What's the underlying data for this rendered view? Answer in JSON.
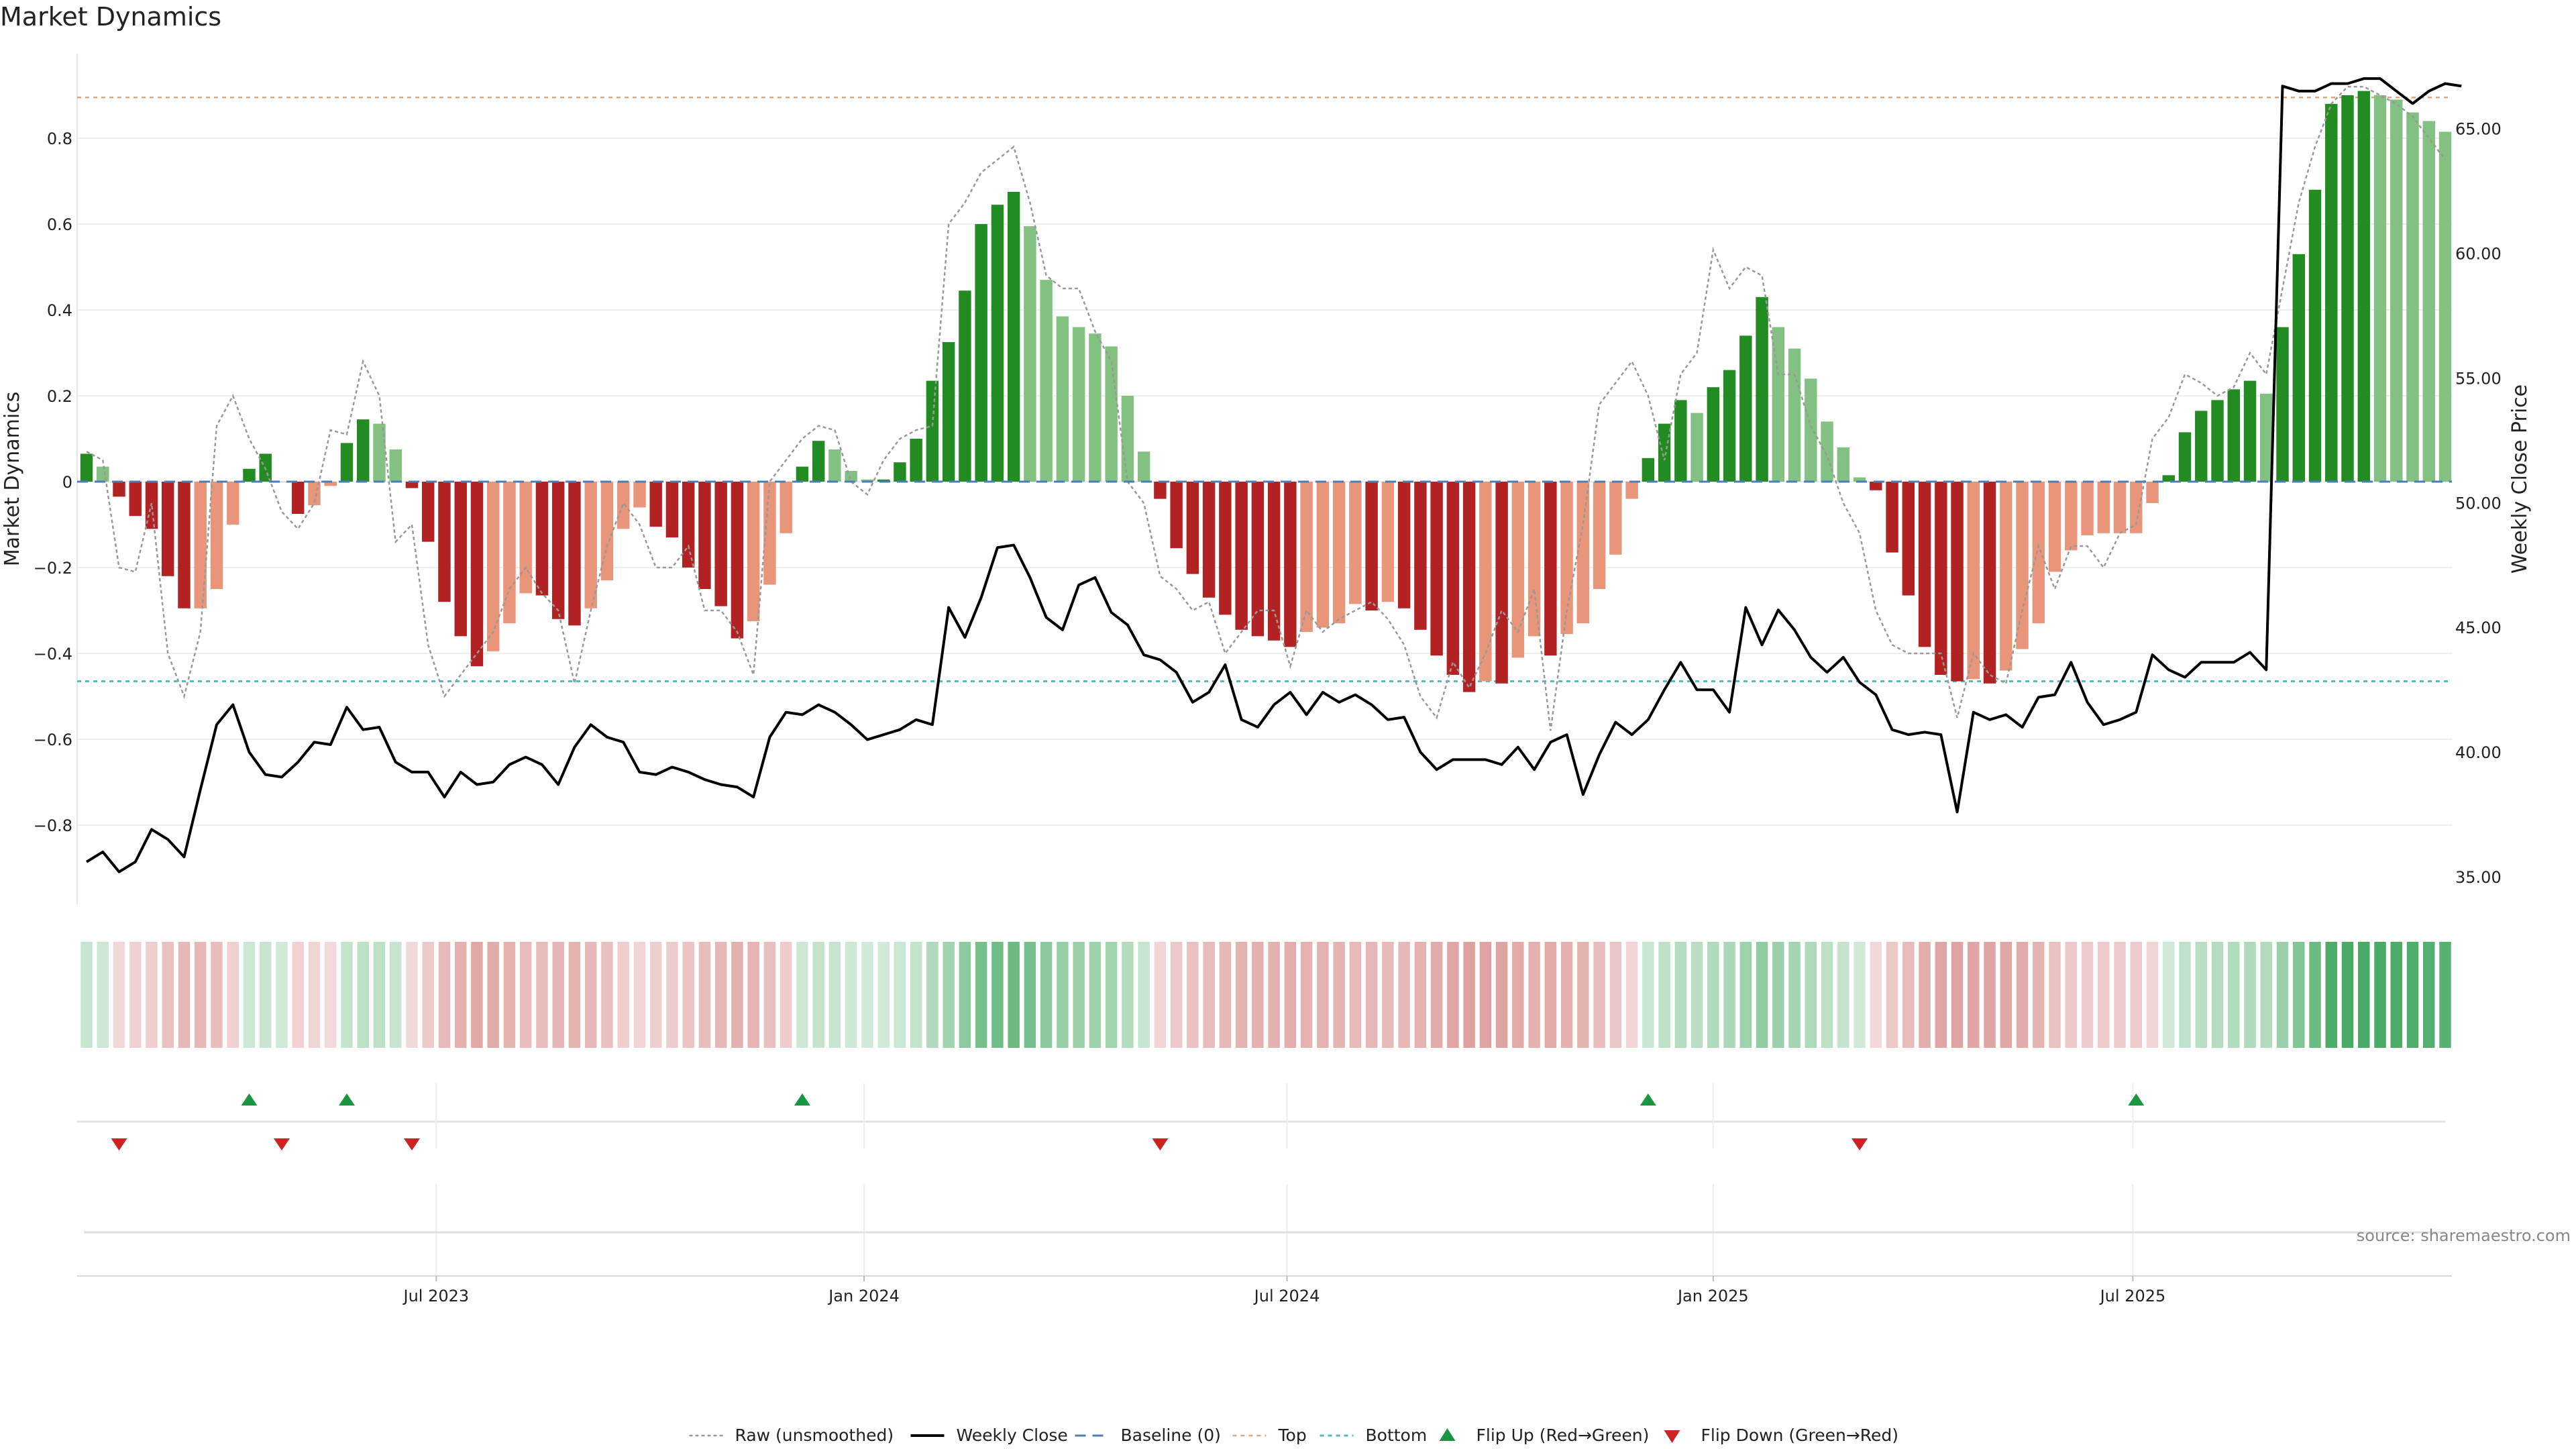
{
  "chart_data": {
    "type": "bar",
    "title": "Market Dynamics",
    "ylabel_left": "Market Dynamics",
    "ylabel_right": "Weekly Close Price",
    "ylim_left": [
      -0.98,
      0.98
    ],
    "ylim_right": [
      33.9,
      68.0
    ],
    "yticks_left": [
      0.8,
      0.6,
      0.4,
      0.2,
      0,
      -0.2,
      -0.4,
      -0.6,
      -0.8
    ],
    "ytick_labels_left": [
      "0.8",
      "0.6",
      "0.4",
      "0.2",
      "0",
      "−0.2",
      "−0.4",
      "−0.6",
      "−0.8"
    ],
    "yticks_right": [
      65,
      60,
      55,
      50,
      45,
      40,
      35
    ],
    "ytick_labels_right": [
      "65.00",
      "60.00",
      "55.00",
      "50.00",
      "45.00",
      "40.00",
      "35.00"
    ],
    "x_start": "2023-02-06",
    "x_end": "2025-10-27",
    "x_ticks": [
      "Jul 2023",
      "Jan 2024",
      "Jul 2024",
      "Jan 2025",
      "Jul 2025"
    ],
    "x_tick_positions": [
      21.5,
      47.8,
      73.8,
      100.0,
      125.8
    ],
    "source": "source: sharemaestro.com",
    "top_level": 0.895,
    "bottom_level": -0.465,
    "baseline": 0,
    "colors": {
      "strong_green": "#228b22",
      "light_green": "#82c182",
      "strong_red": "#b22222",
      "light_red": "#e8957a",
      "price": "#000000",
      "raw": "#999999",
      "baseline": "#4a7fb5",
      "top": "#d4a888",
      "bottom": "#4dbdbd",
      "flip_up": "#1a9641",
      "flip_down": "#cc2222",
      "heat_green": "#2e9e4f",
      "heat_red": "#c85a5a"
    },
    "series": [
      {
        "name": "Market Dynamics (smoothed)",
        "values": [
          0.065,
          0.035,
          -0.035,
          -0.08,
          -0.11,
          -0.22,
          -0.295,
          -0.295,
          -0.25,
          -0.1,
          0.03,
          0.065,
          0.0,
          -0.075,
          -0.055,
          -0.01,
          0.09,
          0.145,
          0.135,
          0.075,
          -0.015,
          -0.14,
          -0.28,
          -0.36,
          -0.43,
          -0.395,
          -0.33,
          -0.26,
          -0.265,
          -0.32,
          -0.335,
          -0.295,
          -0.23,
          -0.11,
          -0.06,
          -0.105,
          -0.13,
          -0.2,
          -0.25,
          -0.29,
          -0.365,
          -0.325,
          -0.24,
          -0.12,
          0.035,
          0.095,
          0.075,
          0.025,
          0.005,
          0.005,
          0.045,
          0.1,
          0.235,
          0.325,
          0.445,
          0.6,
          0.645,
          0.675,
          0.595,
          0.47,
          0.385,
          0.36,
          0.345,
          0.315,
          0.2,
          0.07,
          -0.04,
          -0.155,
          -0.215,
          -0.27,
          -0.31,
          -0.345,
          -0.36,
          -0.37,
          -0.385,
          -0.35,
          -0.34,
          -0.33,
          -0.285,
          -0.3,
          -0.28,
          -0.295,
          -0.345,
          -0.405,
          -0.45,
          -0.49,
          -0.465,
          -0.47,
          -0.41,
          -0.36,
          -0.405,
          -0.355,
          -0.33,
          -0.25,
          -0.17,
          -0.04,
          0.055,
          0.135,
          0.19,
          0.16,
          0.22,
          0.26,
          0.34,
          0.43,
          0.36,
          0.31,
          0.24,
          0.14,
          0.08,
          0.01,
          -0.02,
          -0.165,
          -0.265,
          -0.385,
          -0.45,
          -0.465,
          -0.46,
          -0.47,
          -0.44,
          -0.39,
          -0.33,
          -0.21,
          -0.16,
          -0.125,
          -0.12,
          -0.12,
          -0.12,
          -0.05,
          0.015,
          0.115,
          0.165,
          0.19,
          0.215,
          0.235,
          0.205,
          0.36,
          0.53,
          0.68,
          0.88,
          0.9,
          0.91,
          0.9,
          0.89,
          0.86,
          0.84,
          0.815
        ]
      },
      {
        "name": "Raw (unsmoothed)",
        "values": [
          0.07,
          0.05,
          -0.2,
          -0.21,
          -0.05,
          -0.4,
          -0.5,
          -0.35,
          0.13,
          0.2,
          0.1,
          0.03,
          -0.07,
          -0.11,
          -0.05,
          0.12,
          0.11,
          0.28,
          0.2,
          -0.14,
          -0.1,
          -0.38,
          -0.5,
          -0.45,
          -0.4,
          -0.35,
          -0.25,
          -0.2,
          -0.26,
          -0.3,
          -0.47,
          -0.3,
          -0.15,
          -0.05,
          -0.1,
          -0.2,
          -0.2,
          -0.15,
          -0.3,
          -0.3,
          -0.35,
          -0.45,
          0.0,
          0.05,
          0.1,
          0.13,
          0.12,
          0.0,
          -0.03,
          0.05,
          0.1,
          0.12,
          0.13,
          0.6,
          0.65,
          0.72,
          0.75,
          0.78,
          0.65,
          0.48,
          0.45,
          0.45,
          0.35,
          0.28,
          0.0,
          -0.05,
          -0.22,
          -0.25,
          -0.3,
          -0.28,
          -0.4,
          -0.35,
          -0.3,
          -0.3,
          -0.43,
          -0.3,
          -0.35,
          -0.32,
          -0.3,
          -0.28,
          -0.32,
          -0.38,
          -0.5,
          -0.55,
          -0.42,
          -0.48,
          -0.4,
          -0.3,
          -0.35,
          -0.25,
          -0.58,
          -0.3,
          -0.1,
          0.18,
          0.23,
          0.28,
          0.2,
          0.05,
          0.25,
          0.3,
          0.54,
          0.45,
          0.5,
          0.48,
          0.25,
          0.25,
          0.13,
          0.06,
          -0.05,
          -0.12,
          -0.3,
          -0.38,
          -0.4,
          -0.4,
          -0.4,
          -0.55,
          -0.4,
          -0.45,
          -0.47,
          -0.3,
          -0.15,
          -0.25,
          -0.15,
          -0.15,
          -0.2,
          -0.12,
          -0.1,
          0.1,
          0.15,
          0.25,
          0.23,
          0.2,
          0.22,
          0.3,
          0.25,
          0.45,
          0.65,
          0.78,
          0.88,
          0.92,
          0.92,
          0.9,
          0.88,
          0.85,
          0.8,
          0.75
        ]
      },
      {
        "name": "Weekly Close",
        "values": [
          35.6,
          36.0,
          35.2,
          35.6,
          36.9,
          36.5,
          35.8,
          38.5,
          41.1,
          41.9,
          40.0,
          39.1,
          39.0,
          39.6,
          40.4,
          40.3,
          41.8,
          40.9,
          41.0,
          39.6,
          39.2,
          39.2,
          38.2,
          39.2,
          38.7,
          38.8,
          39.5,
          39.8,
          39.5,
          38.7,
          40.2,
          41.1,
          40.6,
          40.4,
          39.2,
          39.1,
          39.4,
          39.2,
          38.9,
          38.7,
          38.6,
          38.2,
          40.6,
          41.6,
          41.5,
          41.9,
          41.6,
          41.1,
          40.5,
          40.7,
          40.9,
          41.3,
          41.1,
          45.8,
          44.6,
          46.2,
          48.2,
          48.3,
          47.0,
          45.4,
          44.9,
          46.7,
          47.0,
          45.6,
          45.1,
          43.9,
          43.7,
          43.2,
          42.0,
          42.4,
          43.5,
          41.3,
          41.0,
          41.9,
          42.4,
          41.5,
          42.4,
          42.0,
          42.3,
          41.9,
          41.3,
          41.4,
          40.0,
          39.3,
          39.7,
          39.7,
          39.7,
          39.5,
          40.2,
          39.3,
          40.4,
          40.7,
          38.3,
          39.9,
          41.2,
          40.7,
          41.3,
          42.5,
          43.6,
          42.5,
          42.5,
          41.6,
          45.8,
          44.3,
          45.7,
          44.9,
          43.8,
          43.2,
          43.8,
          42.8,
          42.3,
          40.9,
          40.7,
          40.8,
          40.7,
          37.6,
          41.6,
          41.3,
          41.5,
          41.0,
          42.2,
          42.3,
          43.6,
          42.0,
          41.1,
          41.3,
          41.6,
          43.9,
          43.3,
          43.0,
          43.6,
          43.6,
          43.6,
          44.0,
          43.3,
          66.7,
          66.5,
          66.5,
          66.8,
          66.8,
          67.0,
          67.0,
          66.5,
          66.0,
          66.5,
          66.8,
          66.7
        ]
      }
    ],
    "flips_up_index": [
      10,
      16,
      44,
      96,
      126
    ],
    "flips_down_index": [
      2,
      12,
      20,
      66,
      109
    ],
    "legend": [
      {
        "label": "Raw (unsmoothed)",
        "style": "raw"
      },
      {
        "label": "Weekly Close",
        "style": "price"
      },
      {
        "label": "Baseline (0)",
        "style": "baseline"
      },
      {
        "label": "Top",
        "style": "top"
      },
      {
        "label": "Bottom",
        "style": "bottom"
      },
      {
        "label": "Flip Up (Red→Green)",
        "style": "flip_up"
      },
      {
        "label": "Flip Down (Green→Red)",
        "style": "flip_down"
      }
    ]
  }
}
